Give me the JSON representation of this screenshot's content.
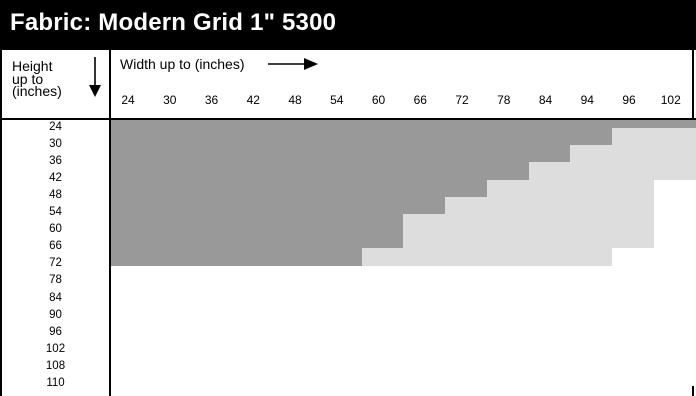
{
  "title": "Fabric: Modern Grid 1\" 5300",
  "height_header": {
    "line1": "Height",
    "line2": "up to",
    "line3": "(inches)"
  },
  "width_header": "Width up to (inches)",
  "width_values": [
    "24",
    "30",
    "36",
    "42",
    "48",
    "54",
    "60",
    "66",
    "72",
    "78",
    "84",
    "94",
    "96",
    "102"
  ],
  "height_values": [
    "24",
    "30",
    "36",
    "42",
    "48",
    "54",
    "60",
    "66",
    "72",
    "78",
    "84",
    "90",
    "96",
    "102",
    "108",
    "110"
  ],
  "colors": {
    "available": "#999999",
    "limited": "#dddddd",
    "unavailable": "#ffffff"
  },
  "legend_note": "",
  "availability": [
    [
      "A",
      "A",
      "A",
      "A",
      "A",
      "A",
      "A",
      "A",
      "A",
      "A",
      "A",
      "A",
      "A",
      "A"
    ],
    [
      "A",
      "A",
      "A",
      "A",
      "A",
      "A",
      "A",
      "A",
      "A",
      "A",
      "A",
      "A",
      "L",
      "L"
    ],
    [
      "A",
      "A",
      "A",
      "A",
      "A",
      "A",
      "A",
      "A",
      "A",
      "A",
      "A",
      "L",
      "L",
      "L"
    ],
    [
      "A",
      "A",
      "A",
      "A",
      "A",
      "A",
      "A",
      "A",
      "A",
      "A",
      "L",
      "L",
      "L",
      "L"
    ],
    [
      "A",
      "A",
      "A",
      "A",
      "A",
      "A",
      "A",
      "A",
      "A",
      "L",
      "L",
      "L",
      "L",
      "N"
    ],
    [
      "A",
      "A",
      "A",
      "A",
      "A",
      "A",
      "A",
      "A",
      "L",
      "L",
      "L",
      "L",
      "L",
      "N"
    ],
    [
      "A",
      "A",
      "A",
      "A",
      "A",
      "A",
      "A",
      "L",
      "L",
      "L",
      "L",
      "L",
      "L",
      "N"
    ],
    [
      "A",
      "A",
      "A",
      "A",
      "A",
      "A",
      "A",
      "L",
      "L",
      "L",
      "L",
      "L",
      "L",
      "N"
    ],
    [
      "A",
      "A",
      "A",
      "A",
      "A",
      "A",
      "L",
      "L",
      "L",
      "L",
      "L",
      "L",
      "N",
      "N"
    ],
    [
      "N",
      "N",
      "N",
      "N",
      "N",
      "N",
      "N",
      "N",
      "N",
      "N",
      "N",
      "N",
      "N",
      "N"
    ],
    [
      "N",
      "N",
      "N",
      "N",
      "N",
      "N",
      "N",
      "N",
      "N",
      "N",
      "N",
      "N",
      "N",
      "N"
    ],
    [
      "N",
      "N",
      "N",
      "N",
      "N",
      "N",
      "N",
      "N",
      "N",
      "N",
      "N",
      "N",
      "N",
      "N"
    ],
    [
      "N",
      "N",
      "N",
      "N",
      "N",
      "N",
      "N",
      "N",
      "N",
      "N",
      "N",
      "N",
      "N",
      "N"
    ],
    [
      "N",
      "N",
      "N",
      "N",
      "N",
      "N",
      "N",
      "N",
      "N",
      "N",
      "N",
      "N",
      "N",
      "N"
    ],
    [
      "N",
      "N",
      "N",
      "N",
      "N",
      "N",
      "N",
      "N",
      "N",
      "N",
      "N",
      "N",
      "N",
      "N"
    ],
    [
      "N",
      "N",
      "N",
      "N",
      "N",
      "N",
      "N",
      "N",
      "N",
      "N",
      "N",
      "N",
      "N",
      "N"
    ]
  ]
}
